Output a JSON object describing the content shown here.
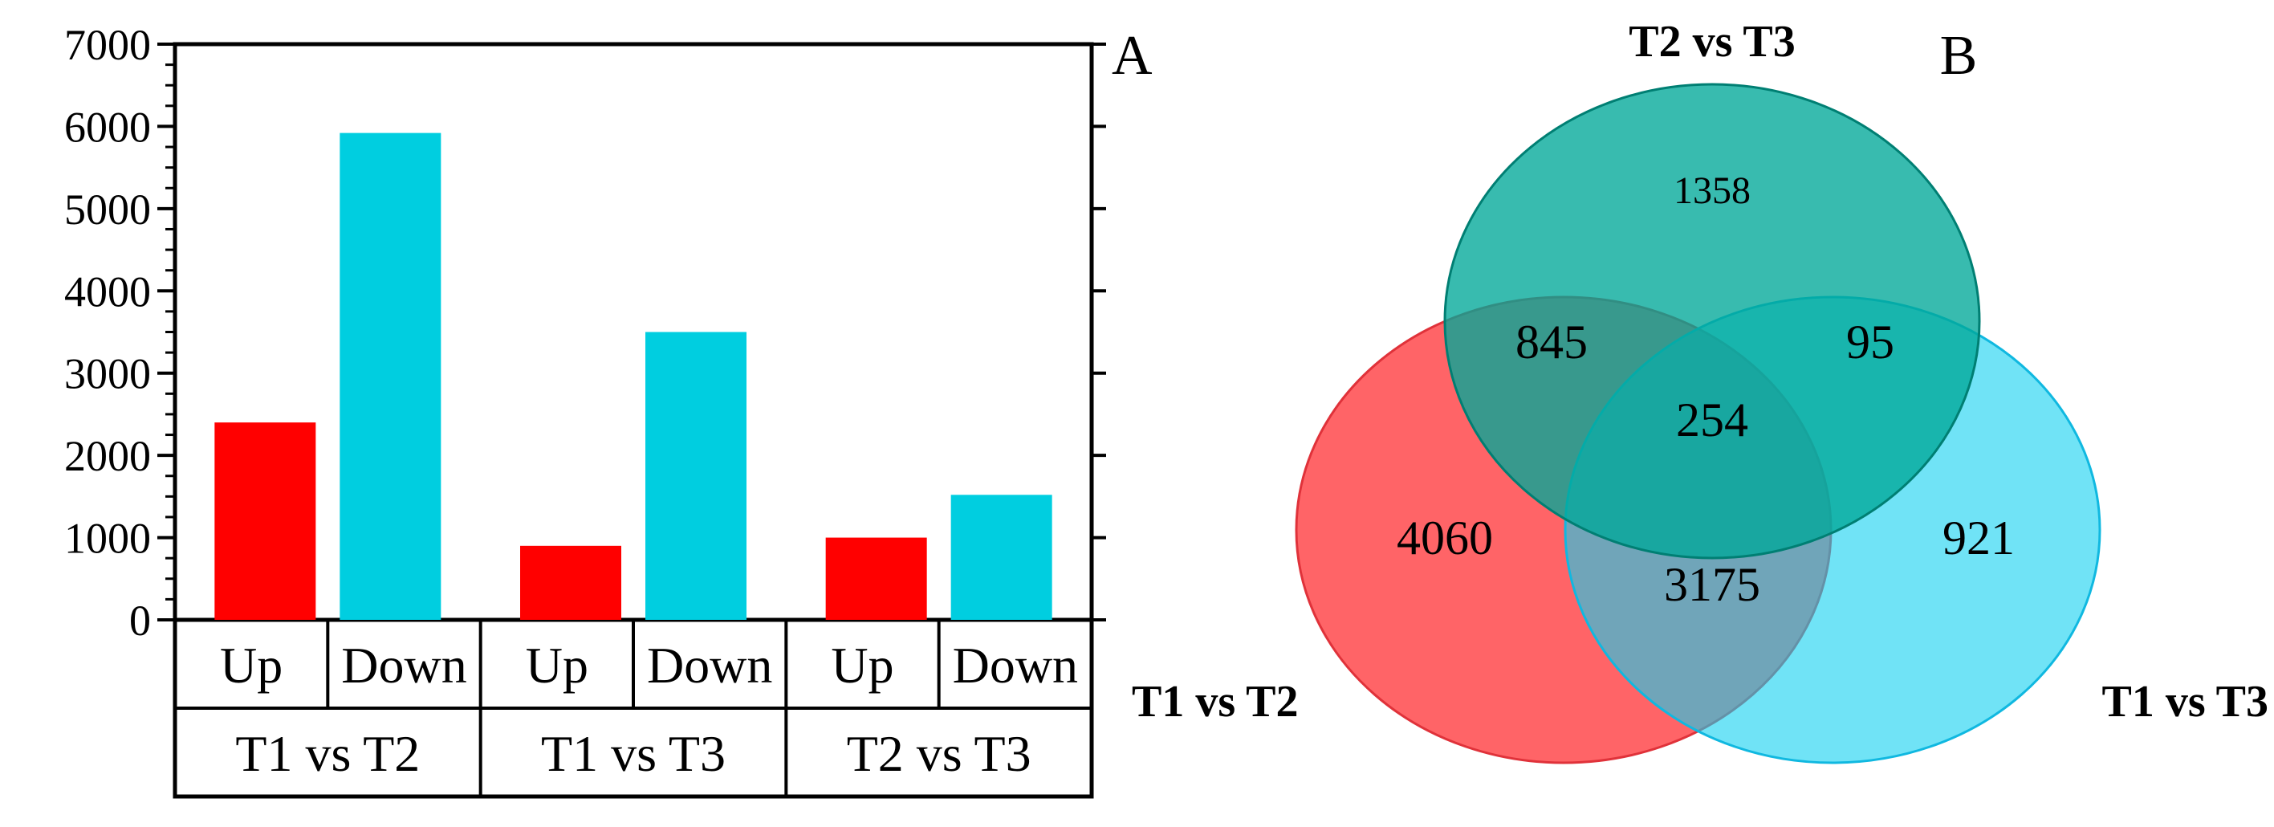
{
  "chart_data": [
    {
      "type": "bar",
      "panel_label": "A",
      "ylim": [
        0,
        7000
      ],
      "y_ticks": [
        0,
        1000,
        2000,
        3000,
        4000,
        5000,
        6000,
        7000
      ],
      "y_tick_labels": [
        "0",
        "1000",
        "2000",
        "3000",
        "4000",
        "5000",
        "6000",
        "7000"
      ],
      "groups": [
        {
          "label": "T1 vs T2",
          "bars": [
            {
              "label": "Up",
              "value": 2400,
              "color": "#ff0000"
            },
            {
              "label": "Down",
              "value": 5920,
              "color": "#00cee0"
            }
          ]
        },
        {
          "label": "T1 vs T3",
          "bars": [
            {
              "label": "Up",
              "value": 900,
              "color": "#ff0000"
            },
            {
              "label": "Down",
              "value": 3500,
              "color": "#00cee0"
            }
          ]
        },
        {
          "label": "T2 vs T3",
          "bars": [
            {
              "label": "Up",
              "value": 1000,
              "color": "#ff0000"
            },
            {
              "label": "Down",
              "value": 1520,
              "color": "#00cee0"
            }
          ]
        }
      ]
    },
    {
      "type": "venn",
      "panel_label": "B",
      "sets": [
        {
          "name": "T2 vs T3",
          "color": "#00a898"
        },
        {
          "name": "T1 vs T2",
          "color": "#ff5c5f"
        },
        {
          "name": "T1 vs T3",
          "color": "#10d0f0"
        }
      ],
      "regions": {
        "T2_only": "1358",
        "T1T2_and_T2T3": "845",
        "T2T3_and_T1T3": "95",
        "all_three": "254",
        "T1T2_only": "4060",
        "T1T3_only": "921",
        "T1T2_and_T1T3": "3175"
      }
    }
  ]
}
